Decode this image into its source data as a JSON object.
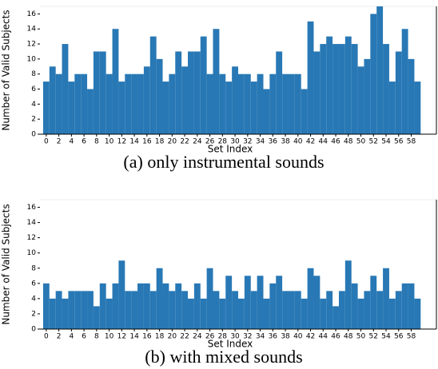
{
  "chart_data": [
    {
      "type": "bar",
      "caption": "(a) only instrumental sounds",
      "xlabel": "Set Index",
      "ylabel": "Number of Valid Subjects",
      "color": "#2878b5",
      "x": [
        0,
        1,
        2,
        3,
        4,
        5,
        6,
        7,
        8,
        9,
        10,
        11,
        12,
        13,
        14,
        15,
        16,
        17,
        18,
        19,
        20,
        21,
        22,
        23,
        24,
        25,
        26,
        27,
        28,
        29,
        30,
        31,
        32,
        33,
        34,
        35,
        36,
        37,
        38,
        39,
        40,
        41,
        42,
        43,
        44,
        45,
        46,
        47,
        48,
        49,
        50,
        51,
        52,
        53,
        54,
        55,
        56,
        57,
        58,
        59
      ],
      "values": [
        7,
        9,
        8,
        12,
        7,
        8,
        8,
        6,
        11,
        11,
        8,
        14,
        7,
        8,
        8,
        8,
        9,
        13,
        10,
        7,
        8,
        11,
        9,
        11,
        11,
        13,
        8,
        14,
        8,
        7,
        9,
        8,
        8,
        7,
        8,
        6,
        8,
        11,
        8,
        8,
        8,
        6,
        15,
        11,
        12,
        13,
        12,
        12,
        13,
        12,
        9,
        10,
        16,
        17,
        12,
        7,
        11,
        14,
        10,
        7
      ],
      "xlim": [
        -1,
        62
      ],
      "ylim": [
        0,
        17
      ],
      "xticks": [
        0,
        2,
        4,
        6,
        8,
        10,
        12,
        14,
        16,
        18,
        20,
        22,
        24,
        26,
        28,
        30,
        32,
        34,
        36,
        38,
        40,
        42,
        44,
        46,
        48,
        50,
        52,
        54,
        56,
        58
      ],
      "yticks": [
        0,
        2,
        4,
        6,
        8,
        10,
        12,
        14,
        16
      ]
    },
    {
      "type": "bar",
      "caption": "(b) with mixed sounds",
      "xlabel": "Set Index",
      "ylabel": "Number of Valid Subjects",
      "color": "#2878b5",
      "x": [
        0,
        1,
        2,
        3,
        4,
        5,
        6,
        7,
        8,
        9,
        10,
        11,
        12,
        13,
        14,
        15,
        16,
        17,
        18,
        19,
        20,
        21,
        22,
        23,
        24,
        25,
        26,
        27,
        28,
        29,
        30,
        31,
        32,
        33,
        34,
        35,
        36,
        37,
        38,
        39,
        40,
        41,
        42,
        43,
        44,
        45,
        46,
        47,
        48,
        49,
        50,
        51,
        52,
        53,
        54,
        55,
        56,
        57,
        58,
        59
      ],
      "values": [
        6,
        4,
        5,
        4,
        5,
        5,
        5,
        5,
        3,
        6,
        4,
        6,
        9,
        5,
        5,
        6,
        6,
        5,
        8,
        6,
        5,
        6,
        5,
        4,
        6,
        4,
        8,
        5,
        4,
        7,
        5,
        4,
        7,
        5,
        7,
        4,
        6,
        7,
        5,
        5,
        5,
        4,
        8,
        7,
        4,
        5,
        3,
        5,
        9,
        6,
        4,
        5,
        7,
        5,
        8,
        4,
        5,
        6,
        6,
        4
      ],
      "xlim": [
        -1,
        62
      ],
      "ylim": [
        0,
        17
      ],
      "xticks": [
        0,
        2,
        4,
        6,
        8,
        10,
        12,
        14,
        16,
        18,
        20,
        22,
        24,
        26,
        28,
        30,
        32,
        34,
        36,
        38,
        40,
        42,
        44,
        46,
        48,
        50,
        52,
        54,
        56,
        58
      ],
      "yticks": [
        0,
        2,
        4,
        6,
        8,
        10,
        12,
        14,
        16
      ]
    }
  ]
}
